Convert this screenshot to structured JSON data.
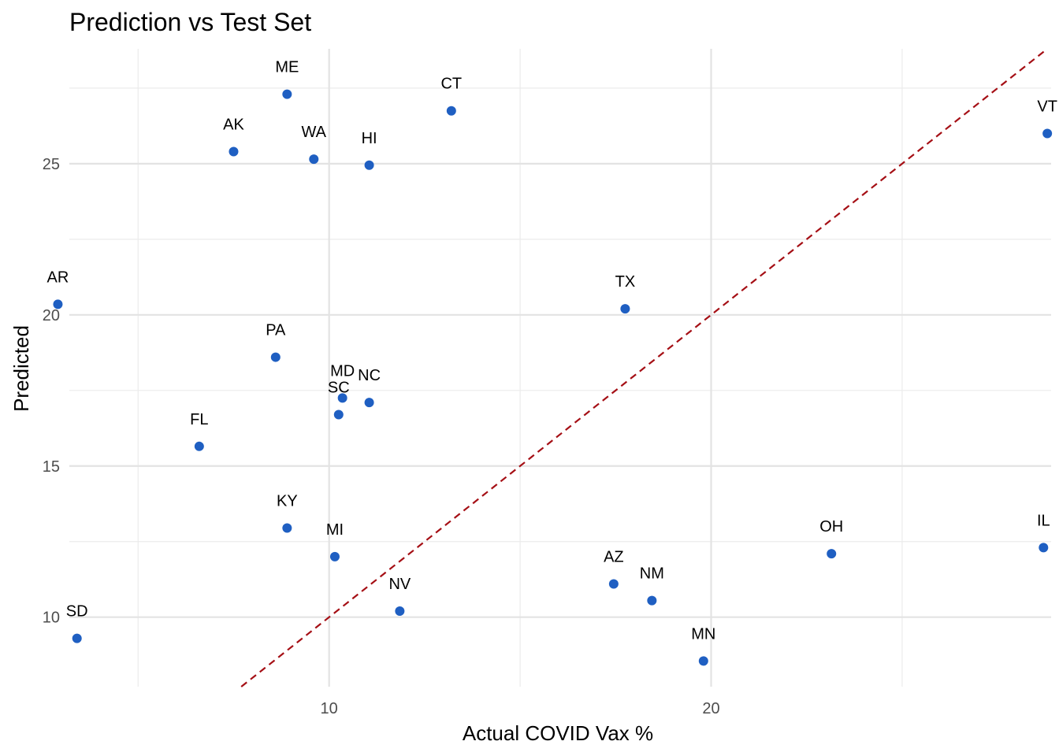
{
  "chart_data": {
    "type": "scatter",
    "title": "Prediction vs Test Set",
    "xlabel": "Actual COVID Vax %",
    "ylabel": "Predicted",
    "xlim": [
      3.2,
      28.9
    ],
    "ylim": [
      7.7,
      28.8
    ],
    "x_ticks": [
      10,
      20
    ],
    "y_ticks": [
      10,
      15,
      20,
      25
    ],
    "x_minor_grid": [
      5,
      15,
      25
    ],
    "y_minor_grid": [
      12.5,
      17.5,
      22.5,
      27.5
    ],
    "grid": true,
    "reference_line": {
      "type": "identity",
      "style": "dashed",
      "color": "#a50f15"
    },
    "point_color": "#1f5fc2",
    "points": [
      {
        "label": "ME",
        "x": 8.9,
        "y": 27.3
      },
      {
        "label": "CT",
        "x": 13.2,
        "y": 26.75
      },
      {
        "label": "AK",
        "x": 7.5,
        "y": 25.4
      },
      {
        "label": "WA",
        "x": 9.6,
        "y": 25.15
      },
      {
        "label": "HI",
        "x": 11.05,
        "y": 24.95
      },
      {
        "label": "VT",
        "x": 28.8,
        "y": 26.0
      },
      {
        "label": "AR",
        "x": 2.9,
        "y": 20.35
      },
      {
        "label": "TX",
        "x": 17.75,
        "y": 20.2
      },
      {
        "label": "PA",
        "x": 8.6,
        "y": 18.6
      },
      {
        "label": "MD",
        "x": 10.35,
        "y": 17.25
      },
      {
        "label": "NC",
        "x": 11.05,
        "y": 17.1
      },
      {
        "label": "SC",
        "x": 10.25,
        "y": 16.7
      },
      {
        "label": "FL",
        "x": 6.6,
        "y": 15.65
      },
      {
        "label": "KY",
        "x": 8.9,
        "y": 12.95
      },
      {
        "label": "MI",
        "x": 10.15,
        "y": 12.0
      },
      {
        "label": "OH",
        "x": 23.15,
        "y": 12.1
      },
      {
        "label": "IL",
        "x": 28.7,
        "y": 12.3
      },
      {
        "label": "AZ",
        "x": 17.45,
        "y": 11.1
      },
      {
        "label": "NM",
        "x": 18.45,
        "y": 10.55
      },
      {
        "label": "NV",
        "x": 11.85,
        "y": 10.2
      },
      {
        "label": "SD",
        "x": 3.4,
        "y": 9.3
      },
      {
        "label": "MN",
        "x": 19.8,
        "y": 8.55
      }
    ]
  }
}
